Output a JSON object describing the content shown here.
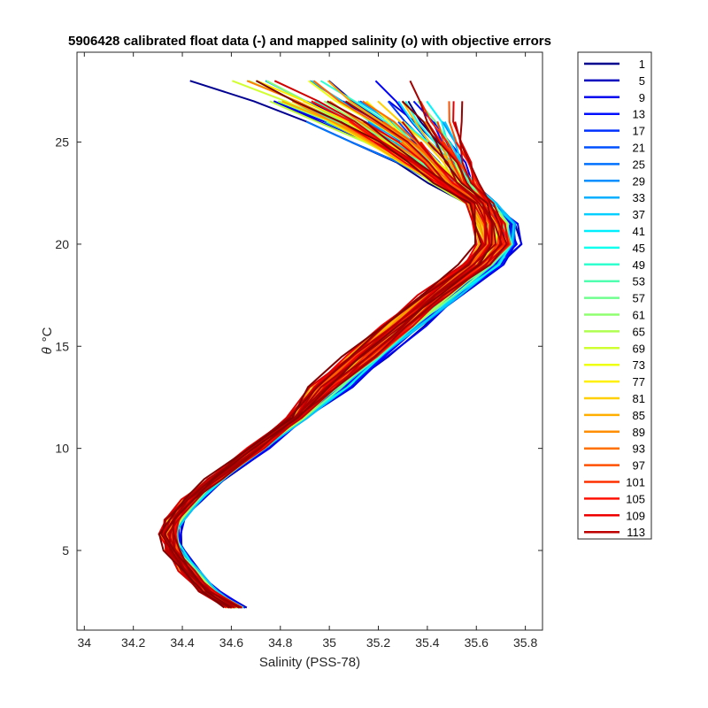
{
  "chart_data": {
    "type": "line",
    "title": "5906428 calibrated float data (-) and mapped salinity (o) with objective errors",
    "xlabel": "Salinity (PSS-78)",
    "ylabel_symbol": "θ",
    "ylabel_unit": "°C",
    "xlim": [
      33.97,
      35.87
    ],
    "ylim": [
      1.1,
      29.4
    ],
    "xticks": [
      34,
      34.2,
      34.4,
      34.6,
      34.8,
      35,
      35.2,
      35.4,
      35.6,
      35.8
    ],
    "xtick_labels": [
      "34",
      "34.2",
      "34.4",
      "34.6",
      "34.8",
      "35",
      "35.2",
      "35.4",
      "35.6",
      "35.8"
    ],
    "yticks": [
      5,
      10,
      15,
      20,
      25
    ],
    "ytick_labels": [
      "5",
      "10",
      "15",
      "20",
      "25"
    ],
    "grid": false,
    "legend_position": "outside-right",
    "colormap": "jet",
    "legend": [
      "1",
      "5",
      "9",
      "13",
      "17",
      "21",
      "25",
      "29",
      "33",
      "37",
      "41",
      "45",
      "49",
      "53",
      "57",
      "61",
      "65",
      "69",
      "73",
      "77",
      "81",
      "85",
      "89",
      "93",
      "97",
      "101",
      "105",
      "109",
      "113"
    ],
    "legend_colors": [
      "#00008f",
      "#0000bf",
      "#0000ef",
      "#0010ff",
      "#0030ff",
      "#0050ff",
      "#0070ff",
      "#008fff",
      "#00afff",
      "#00cfff",
      "#00efff",
      "#10ffef",
      "#30ffcf",
      "#50ffaf",
      "#70ff8f",
      "#8fff70",
      "#afff50",
      "#cfff30",
      "#efff10",
      "#ffef00",
      "#ffcf00",
      "#ffaf00",
      "#ff8f00",
      "#ff7000",
      "#ff5000",
      "#ff3000",
      "#ff1000",
      "#ef0000",
      "#bf0000"
    ],
    "profile_template": {
      "theta": [
        2.2,
        3.0,
        4.0,
        5.0,
        5.8,
        6.5,
        7.5,
        8.5,
        10.0,
        11.5,
        13.0,
        14.5,
        16.0,
        17.5,
        19.0,
        20.0,
        21.0,
        22.0,
        23.0,
        24.0,
        25.0,
        26.0,
        27.0,
        28.0
      ],
      "salinity": [
        34.63,
        34.52,
        34.44,
        34.38,
        34.36,
        34.38,
        34.45,
        34.55,
        34.72,
        34.88,
        35.03,
        35.18,
        35.33,
        35.48,
        35.65,
        35.72,
        35.7,
        35.62,
        35.5,
        35.4,
        35.28,
        35.15,
        35.0,
        34.85
      ]
    }
  }
}
